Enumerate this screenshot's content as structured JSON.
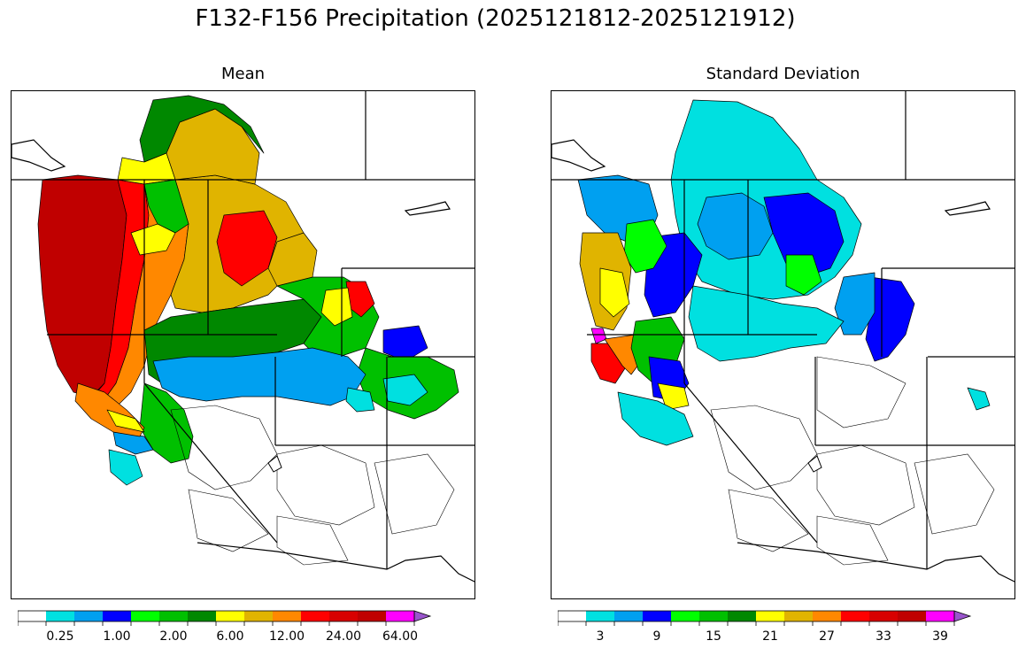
{
  "figure": {
    "title": "F132-F156 Precipitation (2025121812-2025121912)"
  },
  "panels": [
    {
      "title": "Mean",
      "colorbar": {
        "tick_labels": [
          "0.25",
          "1.00",
          "2.00",
          "6.00",
          "12.00",
          "24.00",
          "64.00"
        ],
        "tick_bins": [
          1,
          3,
          5,
          7,
          9,
          11,
          13
        ],
        "colors": [
          "#ffffff",
          "#00e0e0",
          "#00a0f0",
          "#0000ff",
          "#00ff00",
          "#00c000",
          "#008800",
          "#ffff00",
          "#e0b400",
          "#ff8800",
          "#ff0000",
          "#d80000",
          "#c00000",
          "#ff00ff",
          "#9955cc"
        ],
        "extend": "max"
      }
    },
    {
      "title": "Standard Deviation",
      "colorbar": {
        "tick_labels": [
          "3",
          "9",
          "15",
          "21",
          "27",
          "33",
          "39"
        ],
        "tick_bins": [
          1,
          3,
          5,
          7,
          9,
          11,
          13
        ],
        "colors": [
          "#ffffff",
          "#00e0e0",
          "#00a0f0",
          "#0000ff",
          "#00ff00",
          "#00c000",
          "#008800",
          "#ffff00",
          "#e0b400",
          "#ff8800",
          "#ff0000",
          "#d80000",
          "#c00000",
          "#ff00ff",
          "#9955cc"
        ],
        "extend": "max"
      }
    }
  ]
}
